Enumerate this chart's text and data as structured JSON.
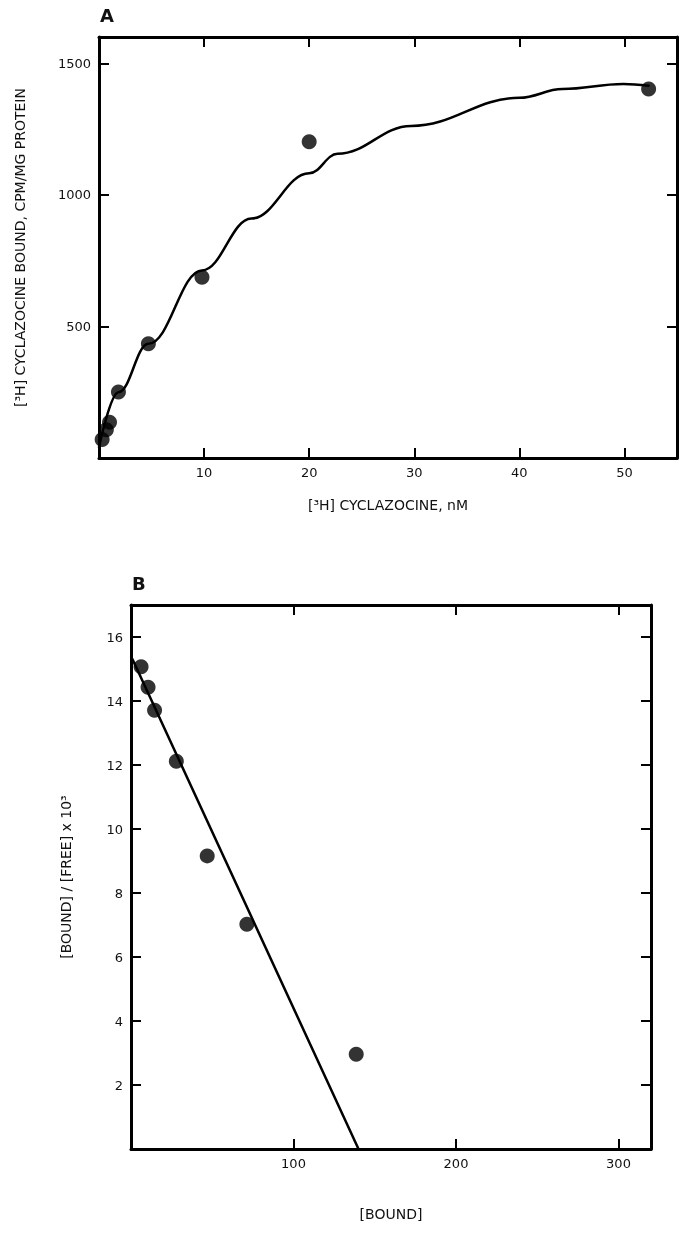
{
  "chart_data": [
    {
      "type": "scatter",
      "title": "A",
      "xlabel": "[³H] CYCLAZOCINE, nM",
      "ylabel": "[³H] CYCLAZOCINE BOUND, CPM/MG PROTEIN",
      "xlim": [
        0,
        55
      ],
      "ylim": [
        0,
        1600
      ],
      "xticks": [
        10,
        20,
        30,
        40,
        50
      ],
      "yticks": [
        500,
        1000,
        1500
      ],
      "grid": false,
      "marker": "circle",
      "series": [
        {
          "color": "#000000",
          "x": [
            0.3,
            0.7,
            1.0,
            1.85,
            4.7,
            9.8,
            20,
            52.3
          ],
          "values": [
            70,
            107,
            136,
            251,
            434,
            687,
            1202,
            1402
          ]
        },
        {
          "type": "line",
          "color": "#000000",
          "marker": "none",
          "line_style": "solid",
          "x": [
            0,
            1.85,
            4.7,
            9.8,
            14.5,
            20,
            22.7,
            29.7,
            40,
            44.1,
            49.9,
            52.3
          ],
          "values": [
            41,
            250,
            434,
            713,
            910,
            1082,
            1156,
            1262,
            1369,
            1402,
            1421,
            1415
          ]
        }
      ]
    },
    {
      "type": "scatter",
      "title": "B",
      "xlabel": "[BOUND]",
      "ylabel": "[BOUND] / [FREE] x 10³",
      "xlim": [
        0,
        320
      ],
      "ylim": [
        0,
        17
      ],
      "xticks": [
        100,
        200,
        300
      ],
      "yticks": [
        2,
        4,
        6,
        8,
        10,
        12,
        14,
        16
      ],
      "grid": false,
      "marker": "circle",
      "series": [
        {
          "color": "#000000",
          "x": [
            6.2,
            10.5,
            14.5,
            27.9,
            46.9,
            71.3,
            138.6
          ],
          "values": [
            15.07,
            14.43,
            13.71,
            12.12,
            9.16,
            7.02,
            2.96
          ]
        },
        {
          "type": "line",
          "color": "#000000",
          "marker": "none",
          "line_style": "solid",
          "x": [
            1,
            140
          ],
          "values": [
            15.3,
            0
          ]
        }
      ]
    }
  ]
}
